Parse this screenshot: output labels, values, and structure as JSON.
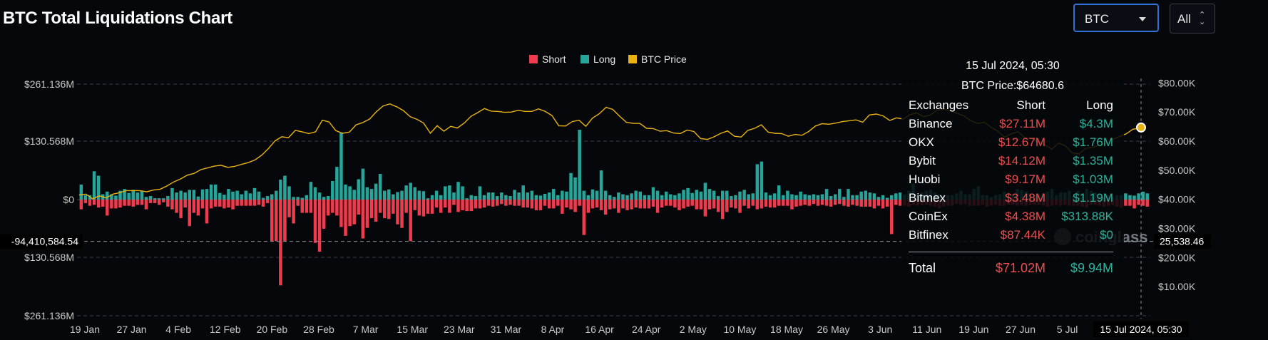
{
  "header": {
    "title": "BTC Total Liquidations Chart"
  },
  "controls": {
    "symbol": "BTC",
    "range": "All"
  },
  "chart_data": {
    "type": "bar",
    "title": "BTC Total Liquidations Chart",
    "legend": [
      {
        "name": "Short",
        "color": "#ef3b4d"
      },
      {
        "name": "Long",
        "color": "#26a69a"
      },
      {
        "name": "BTC Price",
        "color": "#e8b312"
      }
    ],
    "legend_position": "top-center",
    "y_left_ticks": [
      "$261.136M",
      "$130.568M",
      "$0",
      "$130.568M",
      "$261.136M"
    ],
    "y_left_range": [
      -261.136,
      261.136
    ],
    "y_left_unit": "M USD",
    "y_right_ticks": [
      "$80.00K",
      "$70.00K",
      "$60.00K",
      "$50.00K",
      "$40.00K",
      "$30.00K",
      "$20.00K",
      "$10.00K"
    ],
    "y_right_range": [
      0,
      84
    ],
    "y_right_unit": "K USD",
    "x_ticks": [
      "19 Jan",
      "27 Jan",
      "4 Feb",
      "12 Feb",
      "20 Feb",
      "28 Feb",
      "7 Mar",
      "15 Mar",
      "23 Mar",
      "31 Mar",
      "8 Apr",
      "16 Apr",
      "24 Apr",
      "2 May",
      "10 May",
      "18 May",
      "26 May",
      "3 Jun",
      "11 Jun",
      "19 Jun",
      "27 Jun",
      "5 Jul"
    ],
    "crosshair": {
      "x_label": "15 Jul 2024, 05:30",
      "left_value": "-94,410,584.54",
      "right_value": "25,538.46",
      "left_value_num": -94.41,
      "right_value_num": 25.53846
    },
    "series": [
      {
        "name": "Long",
        "values": [
          34,
          10,
          10,
          64,
          54,
          12,
          18,
          12,
          9,
          20,
          24,
          15,
          22,
          16,
          20,
          6,
          8,
          3,
          3,
          3,
          8,
          26,
          16,
          20,
          16,
          22,
          22,
          7,
          23,
          24,
          34,
          34,
          15,
          11,
          24,
          18,
          20,
          12,
          20,
          14,
          26,
          18,
          4,
          8,
          12,
          20,
          45,
          54,
          30,
          6,
          6,
          4,
          10,
          40,
          28,
          16,
          6,
          8,
          42,
          74,
          152,
          34,
          30,
          22,
          46,
          70,
          28,
          24,
          36,
          58,
          20,
          23,
          12,
          17,
          20,
          32,
          38,
          28,
          20,
          19,
          3,
          10,
          20,
          10,
          30,
          32,
          16,
          40,
          30,
          3,
          10,
          8,
          30,
          10,
          16,
          16,
          8,
          16,
          10,
          8,
          22,
          16,
          32,
          16,
          20,
          10,
          9,
          13,
          16,
          24,
          10,
          20,
          18,
          60,
          50,
          158,
          20,
          10,
          23,
          20,
          66,
          20,
          10,
          6,
          16,
          12,
          10,
          14,
          20,
          18,
          10,
          10,
          28,
          20,
          10,
          18,
          12,
          10,
          14,
          22,
          26,
          15,
          22,
          18,
          38,
          24,
          20,
          8,
          20,
          20,
          8,
          10,
          18,
          22,
          12,
          14,
          80,
          86,
          16,
          10,
          14,
          32,
          10,
          20,
          12,
          10,
          18,
          12,
          10,
          12,
          10,
          12,
          24,
          8,
          12,
          24,
          6,
          24,
          10,
          10,
          18,
          20,
          16,
          14,
          6,
          10,
          4,
          10,
          14,
          16,
          12,
          20,
          36,
          12,
          16,
          20,
          22,
          16,
          12,
          8,
          10,
          10,
          14,
          20,
          12,
          12,
          24,
          30,
          10,
          10,
          6,
          10,
          12,
          18,
          10,
          12,
          24,
          22,
          18,
          14,
          8,
          12,
          14,
          18,
          24,
          10,
          16,
          16,
          20,
          8,
          20,
          14,
          24,
          20,
          16,
          12,
          6,
          10,
          6,
          10,
          10,
          14,
          10,
          9,
          14,
          18,
          14
        ]
      },
      {
        "name": "Short",
        "values": [
          -22,
          -8,
          -14,
          -12,
          -18,
          -16,
          -36,
          -20,
          -20,
          -18,
          -14,
          -14,
          -16,
          -12,
          -12,
          -22,
          -8,
          -8,
          -12,
          -6,
          -16,
          -22,
          -30,
          -42,
          -18,
          -60,
          -30,
          -36,
          -20,
          -54,
          -20,
          -16,
          -16,
          -20,
          -18,
          -22,
          -14,
          -14,
          -14,
          -14,
          -14,
          -12,
          -16,
          -8,
          -94,
          -94,
          -194,
          -94,
          -40,
          -54,
          -14,
          -30,
          -30,
          -30,
          -98,
          -118,
          -66,
          -36,
          -30,
          -36,
          -62,
          -82,
          -60,
          -56,
          -34,
          -88,
          -64,
          -42,
          -50,
          -30,
          -42,
          -44,
          -32,
          -56,
          -64,
          -30,
          -94,
          -24,
          -36,
          -38,
          -32,
          -32,
          -18,
          -30,
          -18,
          -30,
          -12,
          -28,
          -24,
          -26,
          -26,
          -20,
          -20,
          -18,
          -14,
          -16,
          -14,
          -10,
          -14,
          -12,
          -14,
          -14,
          -18,
          -18,
          -20,
          -24,
          -24,
          -14,
          -20,
          -20,
          -14,
          -32,
          -18,
          -22,
          -28,
          -14,
          -80,
          -30,
          -20,
          -18,
          -24,
          -34,
          -22,
          -20,
          -30,
          -20,
          -24,
          -22,
          -18,
          -20,
          -20,
          -20,
          -16,
          -30,
          -18,
          -14,
          -14,
          -18,
          -24,
          -20,
          -16,
          -14,
          -22,
          -22,
          -38,
          -22,
          -20,
          -28,
          -44,
          -28,
          -18,
          -20,
          -30,
          -14,
          -20,
          -14,
          -22,
          -20,
          -16,
          -18,
          -18,
          -14,
          -14,
          -14,
          -22,
          -16,
          -14,
          -12,
          -14,
          -10,
          -14,
          -12,
          -14,
          -16,
          -12,
          -10,
          -14,
          -16,
          -12,
          -14,
          -16,
          -16,
          -16,
          -20,
          -14,
          -20,
          -16,
          -78,
          -12,
          -14,
          -14,
          -16,
          -12,
          -14,
          -12,
          -12,
          -14,
          -16,
          -20,
          -16,
          -14,
          -14,
          -10,
          -12,
          -10,
          -14,
          -14,
          -14,
          -12,
          -16,
          -14,
          -12,
          -14,
          -14,
          -12,
          -12,
          -14,
          -12,
          -14,
          -12,
          -12,
          -12,
          -14,
          -16,
          -14,
          -12,
          -14,
          -12,
          -14,
          -14,
          -14,
          -16,
          -18,
          -12,
          -12,
          -14,
          -16,
          -14,
          -12,
          -16,
          -18,
          -14,
          -14,
          -20,
          -12,
          -14,
          -16,
          -14,
          -72,
          -12,
          -12
        ]
      },
      {
        "name": "BTC Price",
        "points": [
          [
            0,
            41.5
          ],
          [
            6,
            41.8
          ],
          [
            12,
            40.2
          ],
          [
            18,
            41.2
          ],
          [
            24,
            40.5
          ],
          [
            30,
            41.8
          ],
          [
            36,
            42.3
          ],
          [
            42,
            43.0
          ],
          [
            48,
            43.0
          ],
          [
            54,
            43.0
          ],
          [
            60,
            42.6
          ],
          [
            66,
            43.2
          ],
          [
            72,
            43.5
          ],
          [
            78,
            44.6
          ],
          [
            84,
            46.0
          ],
          [
            90,
            47.0
          ],
          [
            96,
            48.3
          ],
          [
            102,
            48.9
          ],
          [
            108,
            50.2
          ],
          [
            114,
            50.8
          ],
          [
            120,
            51.4
          ],
          [
            126,
            51.7
          ],
          [
            132,
            51.0
          ],
          [
            138,
            51.3
          ],
          [
            144,
            52.0
          ],
          [
            150,
            52.6
          ],
          [
            156,
            53.5
          ],
          [
            162,
            55.1
          ],
          [
            168,
            57.4
          ],
          [
            174,
            60.1
          ],
          [
            180,
            61.5
          ],
          [
            186,
            61.2
          ],
          [
            192,
            63.7
          ],
          [
            198,
            63.2
          ],
          [
            204,
            62.6
          ],
          [
            210,
            63.2
          ],
          [
            216,
            67.2
          ],
          [
            222,
            66.6
          ],
          [
            228,
            63.6
          ],
          [
            234,
            62.7
          ],
          [
            240,
            63.1
          ],
          [
            246,
            65.6
          ],
          [
            252,
            66.4
          ],
          [
            258,
            67.6
          ],
          [
            264,
            70.1
          ],
          [
            270,
            72.1
          ],
          [
            276,
            72.8
          ],
          [
            282,
            71.8
          ],
          [
            288,
            70.5
          ],
          [
            294,
            68.4
          ],
          [
            300,
            67.5
          ],
          [
            306,
            66.2
          ],
          [
            312,
            62.7
          ],
          [
            318,
            65.3
          ],
          [
            324,
            63.4
          ],
          [
            330,
            65.1
          ],
          [
            336,
            64.5
          ],
          [
            342,
            66.2
          ],
          [
            348,
            68.5
          ],
          [
            354,
            69.8
          ],
          [
            360,
            71.2
          ],
          [
            366,
            70.3
          ],
          [
            372,
            70.2
          ],
          [
            378,
            69.9
          ],
          [
            384,
            70.0
          ],
          [
            390,
            70.6
          ],
          [
            396,
            70.2
          ],
          [
            402,
            70.2
          ],
          [
            408,
            71.1
          ],
          [
            414,
            70.2
          ],
          [
            420,
            68.8
          ],
          [
            426,
            65.3
          ],
          [
            432,
            65.2
          ],
          [
            438,
            66.7
          ],
          [
            444,
            67.2
          ],
          [
            450,
            65.1
          ],
          [
            456,
            67.9
          ],
          [
            462,
            69.4
          ],
          [
            468,
            71.6
          ],
          [
            474,
            70.9
          ],
          [
            480,
            68.6
          ],
          [
            486,
            66.5
          ],
          [
            492,
            66.1
          ],
          [
            498,
            66.1
          ],
          [
            504,
            64.4
          ],
          [
            510,
            64.3
          ],
          [
            516,
            63.4
          ],
          [
            522,
            63.6
          ],
          [
            528,
            62.8
          ],
          [
            534,
            62.6
          ],
          [
            540,
            63.8
          ],
          [
            546,
            63.3
          ],
          [
            552,
            60.9
          ],
          [
            558,
            60.6
          ],
          [
            564,
            61.5
          ],
          [
            570,
            62.7
          ],
          [
            576,
            63.5
          ],
          [
            582,
            61.7
          ],
          [
            588,
            61.4
          ],
          [
            594,
            63.7
          ],
          [
            600,
            64.4
          ],
          [
            606,
            65.6
          ],
          [
            612,
            63.1
          ],
          [
            618,
            62.7
          ],
          [
            624,
            62.6
          ],
          [
            630,
            61.7
          ],
          [
            636,
            62.3
          ],
          [
            642,
            62.0
          ],
          [
            648,
            63.3
          ],
          [
            654,
            65.2
          ],
          [
            660,
            66.0
          ],
          [
            666,
            65.8
          ],
          [
            672,
            66.2
          ],
          [
            678,
            66.7
          ],
          [
            684,
            67.0
          ],
          [
            690,
            67.3
          ],
          [
            696,
            66.5
          ],
          [
            702,
            69.0
          ],
          [
            708,
            69.3
          ],
          [
            714,
            68.7
          ],
          [
            720,
            67.1
          ],
          [
            726,
            68.0
          ],
          [
            732,
            67.6
          ],
          [
            738,
            69.1
          ],
          [
            744,
            69.7
          ],
          [
            750,
            68.4
          ],
          [
            756,
            69.0
          ],
          [
            762,
            70.6
          ],
          [
            768,
            71.0
          ],
          [
            774,
            70.4
          ],
          [
            780,
            69.5
          ],
          [
            786,
            68.7
          ],
          [
            792,
            67.0
          ],
          [
            798,
            66.1
          ],
          [
            804,
            66.5
          ],
          [
            810,
            64.8
          ],
          [
            816,
            63.4
          ],
          [
            822,
            61.4
          ],
          [
            828,
            62.5
          ],
          [
            834,
            63.2
          ],
          [
            840,
            61.2
          ],
          [
            846,
            60.8
          ],
          [
            852,
            59.8
          ],
          [
            858,
            58.7
          ],
          [
            864,
            57.2
          ],
          [
            870,
            59.3
          ],
          [
            876,
            58.4
          ],
          [
            882,
            56.0
          ],
          [
            888,
            55.6
          ],
          [
            894,
            57.5
          ],
          [
            900,
            57.8
          ],
          [
            906,
            58.6
          ],
          [
            912,
            59.1
          ],
          [
            918,
            60.5
          ],
          [
            924,
            61.6
          ],
          [
            930,
            62.5
          ],
          [
            936,
            64.1
          ],
          [
            942,
            64.5
          ]
        ]
      }
    ]
  },
  "tooltip": {
    "date": "15 Jul 2024, 05:30",
    "price": "BTC Price:$64680.6",
    "header": {
      "c1": "Exchanges",
      "c2": "Short",
      "c3": "Long"
    },
    "rows": [
      {
        "exchange": "Binance",
        "short": "$27.11M",
        "long": "$4.3M"
      },
      {
        "exchange": "OKX",
        "short": "$12.67M",
        "long": "$1.76M"
      },
      {
        "exchange": "Bybit",
        "short": "$14.12M",
        "long": "$1.35M"
      },
      {
        "exchange": "Huobi",
        "short": "$9.17M",
        "long": "$1.03M"
      },
      {
        "exchange": "Bitmex",
        "short": "$3.48M",
        "long": "$1.19M"
      },
      {
        "exchange": "CoinEx",
        "short": "$4.38M",
        "long": "$313.88K"
      },
      {
        "exchange": "Bitfinex",
        "short": "$87.44K",
        "long": "$0"
      }
    ],
    "total": {
      "label": "Total",
      "short": "$71.02M",
      "long": "$9.94M"
    }
  },
  "watermark": "coinglass"
}
